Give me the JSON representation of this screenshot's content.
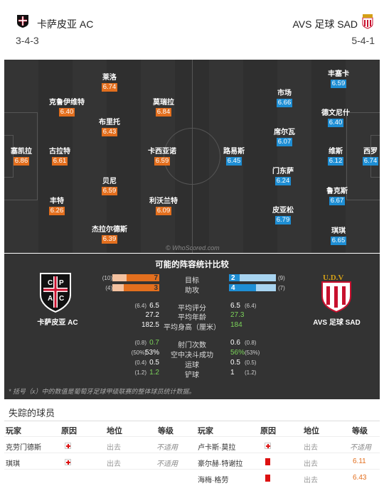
{
  "home": {
    "name": "卡萨皮亚 AC",
    "formation": "3-4-3",
    "color": "#e36f1e"
  },
  "away": {
    "name": "AVS 足球 SAD",
    "formation": "5-4-1",
    "color": "#1e8ed4"
  },
  "crest_text": {
    "home_letters": [
      "C",
      "P",
      "A",
      "C"
    ],
    "away_letters": "U.D.V"
  },
  "home_players": [
    {
      "name": "莱洛",
      "rating": "6.74"
    },
    {
      "name": "克鲁伊维特",
      "rating": "6.40"
    },
    {
      "name": "莫瑞拉",
      "rating": "6.84"
    },
    {
      "name": "布里托",
      "rating": "6.43"
    },
    {
      "name": "塞凯拉",
      "rating": "6.86"
    },
    {
      "name": "古拉特",
      "rating": "6.61"
    },
    {
      "name": "卡西亚诺",
      "rating": "6.59"
    },
    {
      "name": "贝尼",
      "rating": "6.59"
    },
    {
      "name": "丰特",
      "rating": "6.26"
    },
    {
      "name": "利沃兰特",
      "rating": "6.09"
    },
    {
      "name": "杰拉尔德斯",
      "rating": "6.39"
    }
  ],
  "away_players": [
    {
      "name": "丰塞卡",
      "rating": "6.59"
    },
    {
      "name": "市场",
      "rating": "6.66"
    },
    {
      "name": "德文尼什",
      "rating": "6.40"
    },
    {
      "name": "席尔瓦",
      "rating": "6.07"
    },
    {
      "name": "路易斯",
      "rating": "6.45"
    },
    {
      "name": "维斯",
      "rating": "6.12"
    },
    {
      "name": "西罗",
      "rating": "6.74"
    },
    {
      "name": "门东萨",
      "rating": "6.24"
    },
    {
      "name": "鲁克斯",
      "rating": "6.67"
    },
    {
      "name": "皮亚松",
      "rating": "6.79"
    },
    {
      "name": "琪琪",
      "rating": "6.65"
    }
  ],
  "watermark": "© WhoScored.com",
  "comparison": {
    "title": "可能的阵容统计比较",
    "bar_rows": [
      {
        "label": "目标",
        "home": "7",
        "home_sub": "(10)",
        "away": "2",
        "away_sub": "(9)",
        "home_frac": 0.7,
        "away_frac": 0.22
      },
      {
        "label": "助攻",
        "home": "3",
        "home_sub": "(4)",
        "away": "4",
        "away_sub": "(7)",
        "home_frac": 0.75,
        "away_frac": 0.57
      }
    ],
    "rows": [
      {
        "label": "平均评分",
        "home": "6.5",
        "home_sub": "(6.4)",
        "away": "6.5",
        "away_sub": "(6.4)",
        "hl": "",
        "al": ""
      },
      {
        "label": "平均年龄",
        "home": "27.2",
        "home_sub": "",
        "away": "27.3",
        "away_sub": "",
        "hl": "",
        "al": "g"
      },
      {
        "label": "平均身高（厘米）",
        "home": "182.5",
        "home_sub": "",
        "away": "184",
        "away_sub": "",
        "hl": "",
        "al": "g"
      },
      {
        "label": "射门次数",
        "home": "0.7",
        "home_sub": "(0.8)",
        "away": "0.6",
        "away_sub": "(0.8)",
        "hl": "g",
        "al": ""
      },
      {
        "label": "空中决斗成功",
        "home": "53%",
        "home_sub": "(50%)",
        "away": "56%",
        "away_sub": "(53%)",
        "hl": "",
        "al": "g"
      },
      {
        "label": "运球",
        "home": "0.5",
        "home_sub": "(0.4)",
        "away": "0.5",
        "away_sub": "(0.5)",
        "hl": "",
        "al": ""
      },
      {
        "label": "铲球",
        "home": "1.2",
        "home_sub": "(1.2)",
        "away": "1",
        "away_sub": "(1.2)",
        "hl": "g",
        "al": ""
      }
    ],
    "note": "* 括号（x）中的数值是葡萄牙足球甲级联赛的整体球员统计数据。"
  },
  "missing": {
    "title": "失踪的球员",
    "headers": [
      "玩家",
      "原因",
      "地位",
      "等级"
    ],
    "home": [
      {
        "player": "克劳门德斯",
        "status": "出去",
        "rating": "不适用"
      },
      {
        "player": "琪琪",
        "status": "出去",
        "rating": "不适用"
      }
    ],
    "away": [
      {
        "player": "卢卡斯·莫拉",
        "status": "出去",
        "rating": "不适用",
        "reason": "injury"
      },
      {
        "player": "豪尔赫·特谢拉",
        "status": "出去",
        "rating": "6.11",
        "reason": "red-card"
      },
      {
        "player": "海梅·格劳",
        "status": "出去",
        "rating": "6.43",
        "reason": "red-card"
      }
    ]
  }
}
